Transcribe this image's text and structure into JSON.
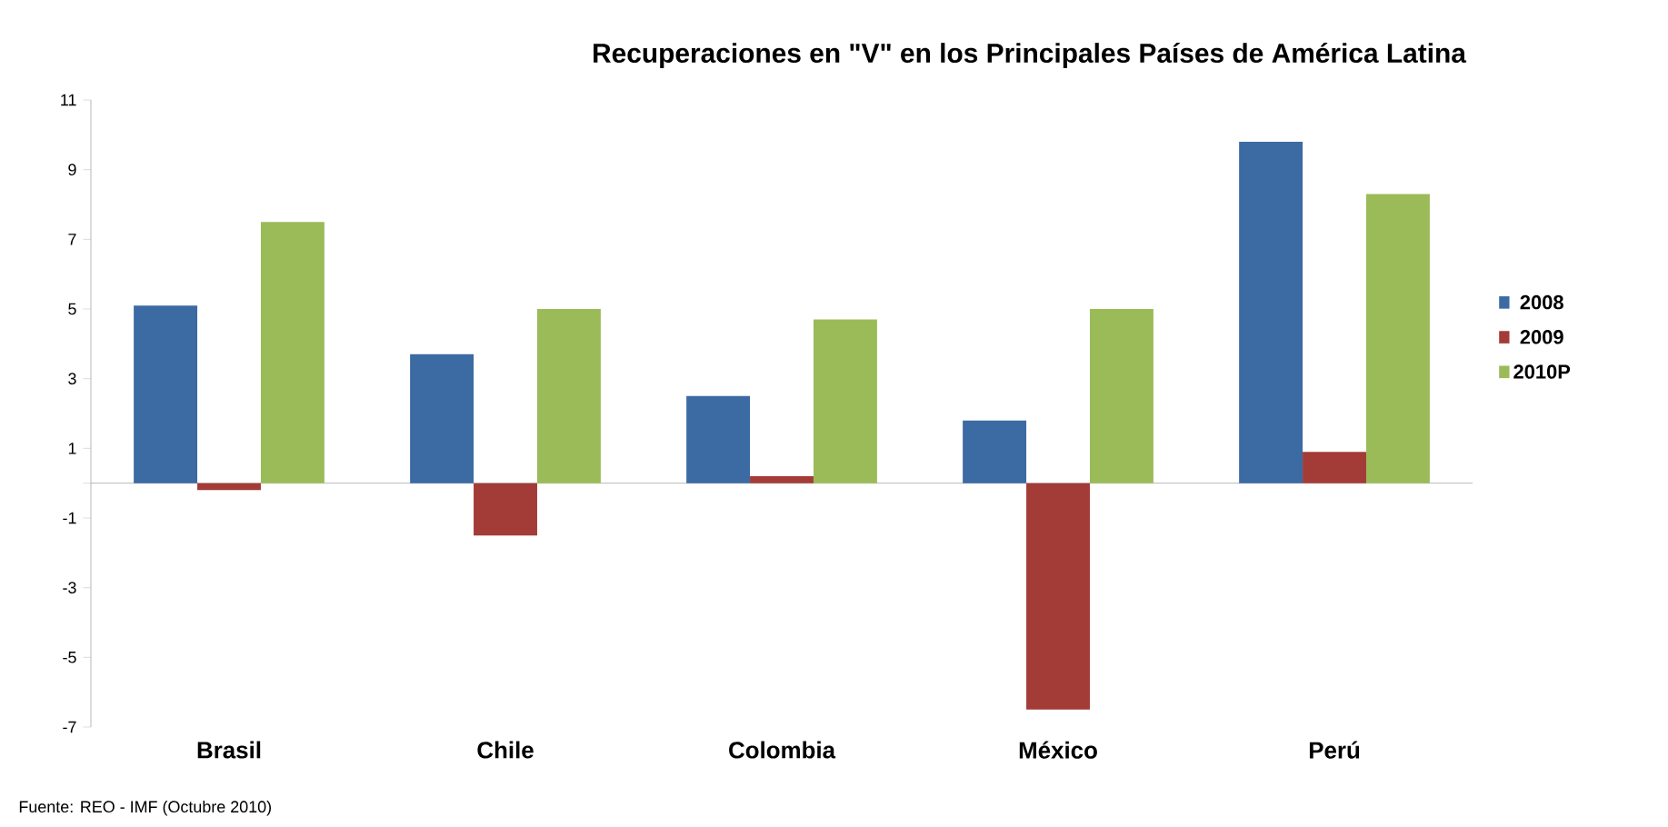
{
  "chart_data": {
    "type": "bar",
    "title": "Recuperaciones en \"V\" en los Principales Países de  América Latina",
    "categories": [
      "Brasil",
      "Chile",
      "Colombia",
      "México",
      "Perú"
    ],
    "series": [
      {
        "name": "2008",
        "color": "#3c6aa3",
        "values": [
          5.1,
          3.7,
          2.5,
          1.8,
          9.8
        ]
      },
      {
        "name": "2009",
        "color": "#a33b37",
        "values": [
          -0.2,
          -1.5,
          0.2,
          -6.5,
          0.9
        ]
      },
      {
        "name": "2010P",
        "color": "#9bbb59",
        "values": [
          7.5,
          5.0,
          4.7,
          5.0,
          8.3
        ]
      }
    ],
    "ylim": [
      -7,
      11
    ],
    "yticks": [
      -7,
      -5,
      -3,
      -1,
      1,
      3,
      5,
      7,
      9,
      11
    ],
    "grid": false,
    "legend": "right",
    "annotations": [
      "Fuente:  REO - IMF (Octubre 2010)"
    ]
  }
}
